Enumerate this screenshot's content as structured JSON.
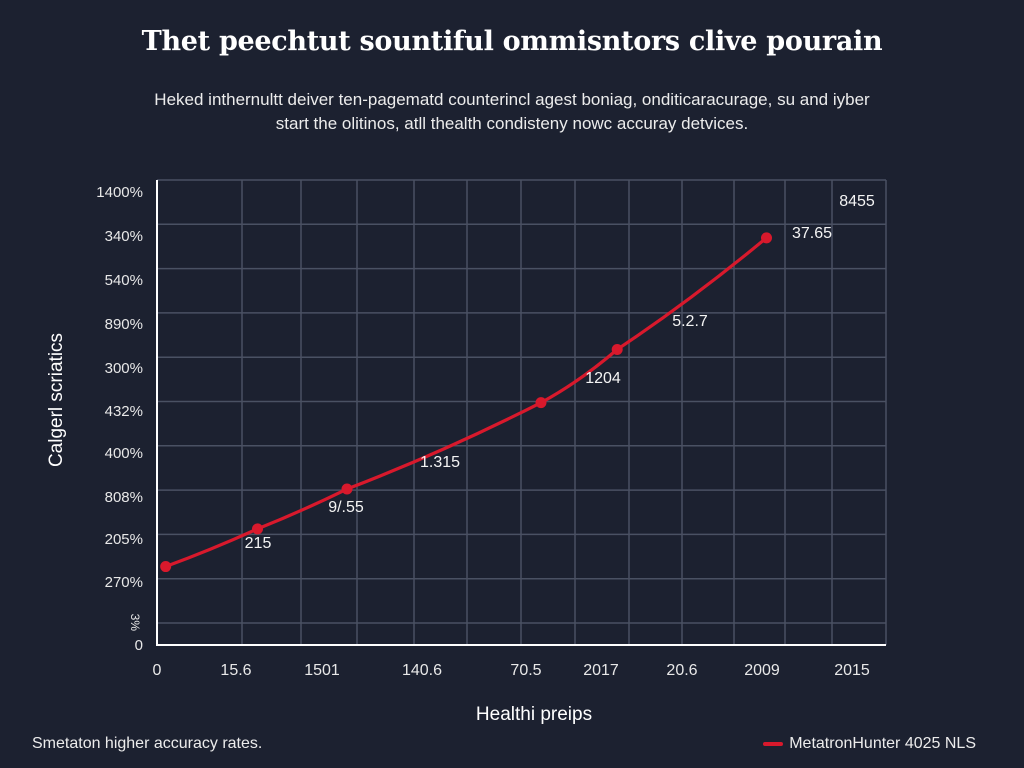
{
  "title": "Thet peechtut sountiful ommisntors clive pourain",
  "subtitle_lines": [
    "Heked inthernultt deiver ten-pagematd counterincl agest boniag, onditicaracurage, su and iyber",
    "start the olitinos, atll thealth condisteny nowc accuray detvices."
  ],
  "footnote": "Smetaton higher accuracy rates.",
  "chart_data": {
    "type": "line",
    "title": "Thet peechtut sountiful ommisntors clive pourain",
    "xlabel": "Healthi preips",
    "ylabel": "Calgerl scriatics",
    "x_tick_labels": [
      "0",
      "15.6",
      "1501",
      "140.6",
      "70.5",
      "2017",
      "20.6",
      "2009",
      "2015"
    ],
    "y_tick_labels": [
      "1400%",
      "340%",
      "540%",
      "890%",
      "300%",
      "432%",
      "400%",
      "808%",
      "205%",
      "270%",
      "3%",
      "0"
    ],
    "grid": true,
    "legend": {
      "position": "bottom-right",
      "entries": [
        "MetatronHunter 4025 NLS"
      ]
    },
    "series": [
      {
        "name": "MetatronHunter 4025 NLS",
        "color": "#d8192c",
        "points": [
          {
            "x_tick_pos": 0.11,
            "y_tick_pos": 8.5,
            "label": "215"
          },
          {
            "x_tick_pos": 1.25,
            "y_tick_pos": 7.65,
            "label": "9/.55"
          },
          {
            "x_tick_pos": 2.25,
            "y_tick_pos": 6.75,
            "label": "1.315"
          },
          {
            "x_tick_pos": 4.2,
            "y_tick_pos": 4.8,
            "label": "1204"
          },
          {
            "x_tick_pos": 5.2,
            "y_tick_pos": 3.6,
            "label": "5.2.7"
          },
          {
            "x_tick_pos": 7.05,
            "y_tick_pos": 1.08,
            "label": "37.65 / 8455"
          }
        ],
        "point_labels": [
          "215",
          "9/.55",
          "1.315",
          "1204",
          "5.2.7",
          "37.65",
          "8455"
        ]
      }
    ]
  },
  "colors": {
    "background": "#1c2130",
    "grid": "#4a5163",
    "axis": "#ffffff",
    "line": "#d8192c"
  }
}
